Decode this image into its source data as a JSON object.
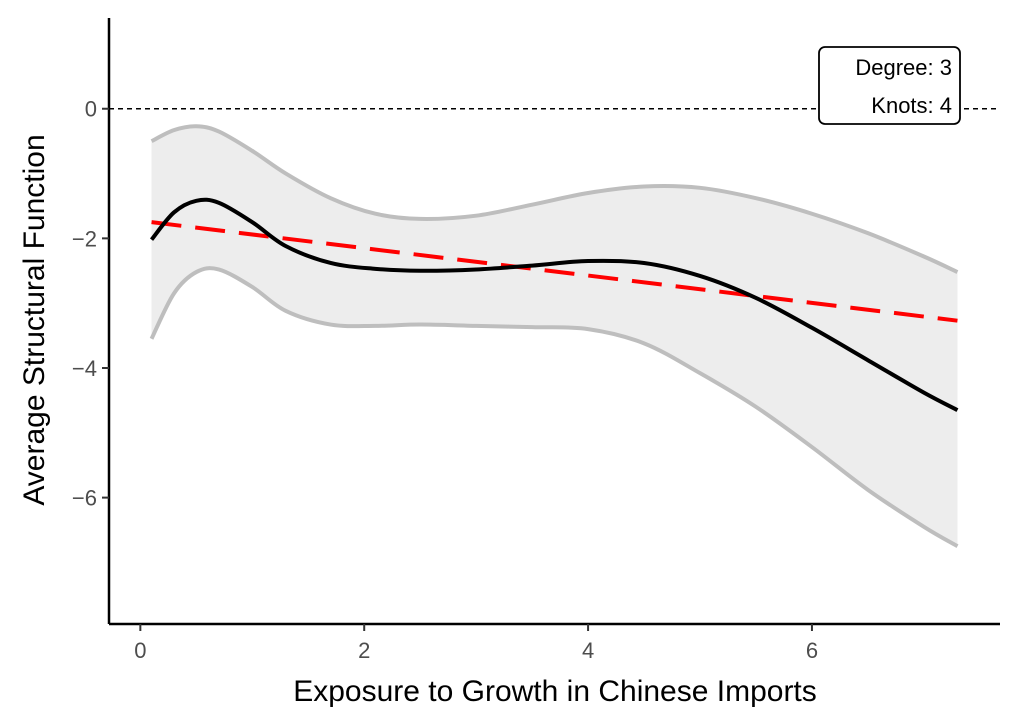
{
  "chart_data": {
    "type": "line",
    "title": "",
    "xlabel": "Exposure to Growth in Chinese Imports",
    "ylabel": "Average Structural Function",
    "xlim": [
      -0.28,
      7.68
    ],
    "ylim": [
      -7.95,
      1.4
    ],
    "x_ticks": [
      0,
      2,
      4,
      6
    ],
    "x_tick_labels": [
      "0",
      "2",
      "4",
      "6"
    ],
    "y_ticks": [
      0,
      -2,
      -4,
      -6
    ],
    "y_tick_labels": [
      "0",
      "−2",
      "−4",
      "−6"
    ],
    "reference_line": {
      "y": 0,
      "style": "dotted"
    },
    "annotation": {
      "lines": [
        "Degree: 3",
        "Knots: 4"
      ],
      "position": "top-right"
    },
    "series": [
      {
        "name": "upper_ci",
        "color": "#bebebe",
        "x": [
          0.1,
          0.3,
          0.5,
          0.7,
          1.0,
          1.3,
          1.7,
          2.1,
          2.5,
          3.0,
          3.5,
          4.0,
          4.5,
          5.0,
          5.5,
          6.0,
          6.5,
          7.0,
          7.3
        ],
        "y": [
          -0.5,
          -0.33,
          -0.27,
          -0.35,
          -0.65,
          -1.0,
          -1.38,
          -1.62,
          -1.7,
          -1.65,
          -1.48,
          -1.3,
          -1.2,
          -1.22,
          -1.38,
          -1.62,
          -1.92,
          -2.28,
          -2.52
        ]
      },
      {
        "name": "lower_ci",
        "color": "#bebebe",
        "x": [
          0.1,
          0.3,
          0.5,
          0.7,
          1.0,
          1.3,
          1.7,
          2.1,
          2.5,
          3.0,
          3.5,
          4.0,
          4.5,
          5.0,
          5.5,
          6.0,
          6.5,
          7.0,
          7.3
        ],
        "y": [
          -3.55,
          -2.85,
          -2.52,
          -2.48,
          -2.75,
          -3.12,
          -3.33,
          -3.35,
          -3.33,
          -3.35,
          -3.37,
          -3.4,
          -3.62,
          -4.08,
          -4.6,
          -5.22,
          -5.88,
          -6.45,
          -6.75
        ]
      },
      {
        "name": "estimate",
        "color": "#000000",
        "x": [
          0.1,
          0.3,
          0.5,
          0.7,
          1.0,
          1.3,
          1.7,
          2.1,
          2.5,
          3.0,
          3.5,
          4.0,
          4.5,
          5.0,
          5.5,
          6.0,
          6.5,
          7.0,
          7.3
        ],
        "y": [
          -2.02,
          -1.6,
          -1.42,
          -1.45,
          -1.75,
          -2.12,
          -2.38,
          -2.47,
          -2.5,
          -2.48,
          -2.42,
          -2.35,
          -2.38,
          -2.58,
          -2.92,
          -3.38,
          -3.88,
          -4.38,
          -4.65
        ]
      },
      {
        "name": "linear_fit",
        "color": "#ff0000",
        "style": "dashed",
        "x": [
          0.1,
          7.3
        ],
        "y": [
          -1.75,
          -3.27
        ]
      }
    ]
  }
}
